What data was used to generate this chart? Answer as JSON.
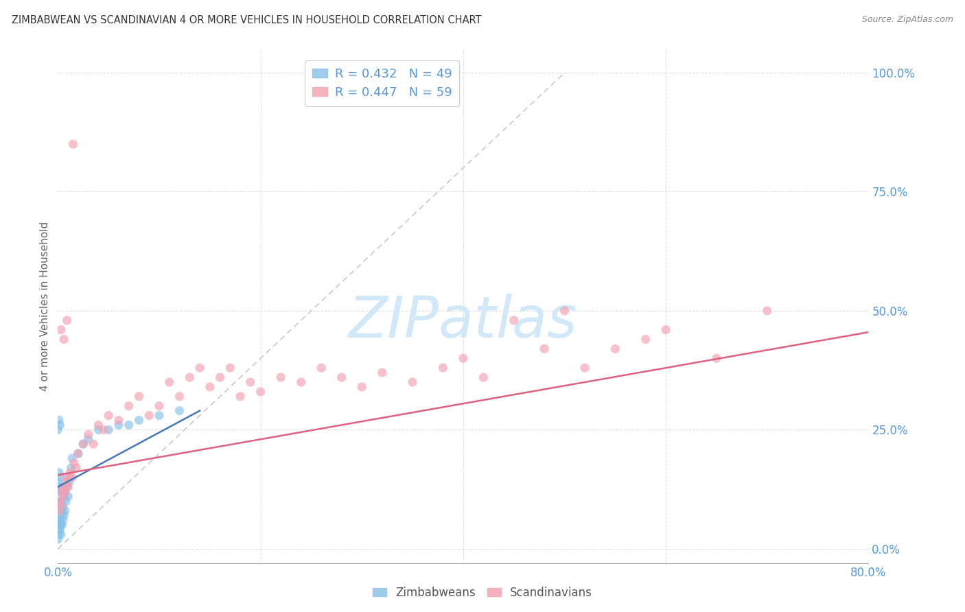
{
  "title": "ZIMBABWEAN VS SCANDINAVIAN 4 OR MORE VEHICLES IN HOUSEHOLD CORRELATION CHART",
  "source": "Source: ZipAtlas.com",
  "ylabel": "4 or more Vehicles in Household",
  "y_ticks": [
    0.0,
    0.25,
    0.5,
    0.75,
    1.0
  ],
  "y_tick_labels": [
    "0.0%",
    "25.0%",
    "50.0%",
    "75.0%",
    "100.0%"
  ],
  "x_ticks": [
    0.0,
    0.8
  ],
  "x_tick_labels": [
    "0.0%",
    "80.0%"
  ],
  "x_min": 0.0,
  "x_max": 0.8,
  "y_min": -0.03,
  "y_max": 1.05,
  "legend_r1": "R = 0.432",
  "legend_n1": "N = 49",
  "legend_r2": "R = 0.447",
  "legend_n2": "N = 59",
  "blue_color": "#88c0e8",
  "pink_color": "#f4a0b0",
  "blue_line_color": "#4477bb",
  "pink_line_color": "#e06080",
  "diag_line_color": "#c0c0c0",
  "grid_color": "#e0e0e0",
  "axis_label_color": "#5599dd",
  "watermark_color": "#d0e8f8",
  "zimbabwean_x": [
    0.0,
    0.0,
    0.0,
    0.0,
    0.0,
    0.001,
    0.001,
    0.001,
    0.001,
    0.001,
    0.002,
    0.002,
    0.002,
    0.002,
    0.003,
    0.003,
    0.003,
    0.003,
    0.003,
    0.004,
    0.004,
    0.004,
    0.005,
    0.005,
    0.005,
    0.006,
    0.006,
    0.007,
    0.007,
    0.008,
    0.009,
    0.01,
    0.011,
    0.012,
    0.013,
    0.014,
    0.02,
    0.025,
    0.03,
    0.04,
    0.05,
    0.06,
    0.07,
    0.08,
    0.1,
    0.12,
    0.0,
    0.001,
    0.002
  ],
  "zimbabwean_y": [
    0.02,
    0.04,
    0.06,
    0.1,
    0.14,
    0.03,
    0.05,
    0.08,
    0.12,
    0.16,
    0.04,
    0.06,
    0.09,
    0.13,
    0.03,
    0.05,
    0.07,
    0.1,
    0.15,
    0.05,
    0.08,
    0.12,
    0.06,
    0.09,
    0.13,
    0.07,
    0.11,
    0.08,
    0.12,
    0.1,
    0.13,
    0.11,
    0.14,
    0.15,
    0.17,
    0.19,
    0.2,
    0.22,
    0.23,
    0.25,
    0.25,
    0.26,
    0.26,
    0.27,
    0.28,
    0.29,
    0.25,
    0.27,
    0.26
  ],
  "scandinavian_x": [
    0.001,
    0.002,
    0.003,
    0.004,
    0.005,
    0.006,
    0.007,
    0.008,
    0.009,
    0.01,
    0.012,
    0.014,
    0.016,
    0.018,
    0.02,
    0.025,
    0.03,
    0.035,
    0.04,
    0.045,
    0.05,
    0.06,
    0.07,
    0.08,
    0.09,
    0.1,
    0.11,
    0.12,
    0.13,
    0.14,
    0.15,
    0.16,
    0.17,
    0.18,
    0.19,
    0.2,
    0.22,
    0.24,
    0.26,
    0.28,
    0.3,
    0.32,
    0.35,
    0.38,
    0.4,
    0.42,
    0.45,
    0.48,
    0.5,
    0.52,
    0.55,
    0.58,
    0.6,
    0.65,
    0.7,
    0.003,
    0.006,
    0.009,
    0.015
  ],
  "scandinavian_y": [
    0.08,
    0.1,
    0.09,
    0.12,
    0.11,
    0.13,
    0.12,
    0.15,
    0.14,
    0.13,
    0.16,
    0.15,
    0.18,
    0.17,
    0.2,
    0.22,
    0.24,
    0.22,
    0.26,
    0.25,
    0.28,
    0.27,
    0.3,
    0.32,
    0.28,
    0.3,
    0.35,
    0.32,
    0.36,
    0.38,
    0.34,
    0.36,
    0.38,
    0.32,
    0.35,
    0.33,
    0.36,
    0.35,
    0.38,
    0.36,
    0.34,
    0.37,
    0.35,
    0.38,
    0.4,
    0.36,
    0.48,
    0.42,
    0.5,
    0.38,
    0.42,
    0.44,
    0.46,
    0.4,
    0.5,
    0.46,
    0.44,
    0.48,
    0.85
  ],
  "zim_trend_x": [
    0.0,
    0.14
  ],
  "zim_trend_y": [
    0.13,
    0.29
  ],
  "scan_trend_x": [
    0.0,
    0.8
  ],
  "scan_trend_y": [
    0.155,
    0.455
  ]
}
